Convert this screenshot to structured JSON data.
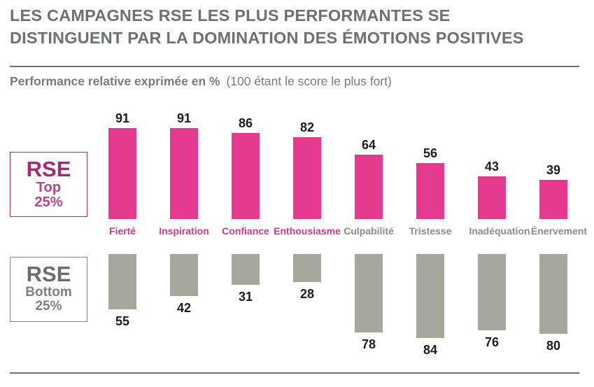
{
  "title": {
    "line1": "LES CAMPAGNES RSE LES PLUS PERFORMANTES SE",
    "line2": "DISTINGUENT PAR LA DOMINATION DES ÉMOTIONS POSITIVES"
  },
  "subtitle": {
    "bold": "Performance relative exprimée en %",
    "light": "(100 étant le score le plus fort)"
  },
  "legend": {
    "top": {
      "line1": "RSE",
      "line2": "Top",
      "line3": "25%"
    },
    "bottom": {
      "line1": "RSE",
      "line2": "Bottom",
      "line3": "25%"
    }
  },
  "chart_data": {
    "type": "bar",
    "title": "LES CAMPAGNES RSE LES PLUS PERFORMANTES SE DISTINGUENT PAR LA DOMINATION DES ÉMOTIONS POSITIVES",
    "subtitle": "Performance relative exprimée en % (100 étant le score le plus fort)",
    "categories": [
      "Fierté",
      "Inspiration",
      "Confiance",
      "Enthousiasme",
      "Culpabilité",
      "Tristesse",
      "Inadéquation",
      "Énervement"
    ],
    "category_sentiment": [
      "positive",
      "positive",
      "positive",
      "positive",
      "negative",
      "negative",
      "negative",
      "negative"
    ],
    "series": [
      {
        "name": "RSE Top 25%",
        "values": [
          91,
          91,
          86,
          82,
          64,
          56,
          43,
          39
        ]
      },
      {
        "name": "RSE Bottom 25%",
        "values": [
          55,
          42,
          31,
          28,
          78,
          84,
          76,
          80
        ]
      }
    ],
    "ylim": [
      0,
      100
    ],
    "grid": false,
    "legend_position": "left",
    "orientation": "vertical",
    "layout_note": "top series grows upward from shared baseline, bottom series hangs downward from shared top line"
  },
  "colors": {
    "bar_pink": "#e63a8e",
    "bar_gray": "#a6a79b",
    "label_pink": "#c23e83",
    "label_gray": "#8b8b89",
    "value_text": "#1c1c1a",
    "title_gray": "#6b7272",
    "subtitle_gray": "#757c7a",
    "rule": "#6b7273",
    "legend_top_border": "#a52f73",
    "legend_top_text": "#a02b6e",
    "legend_top_subtext": "#b5458a",
    "legend_bottom_border": "#84867f",
    "legend_bottom_text": "#686e6b",
    "legend_bottom_subtext": "#7d827e"
  }
}
